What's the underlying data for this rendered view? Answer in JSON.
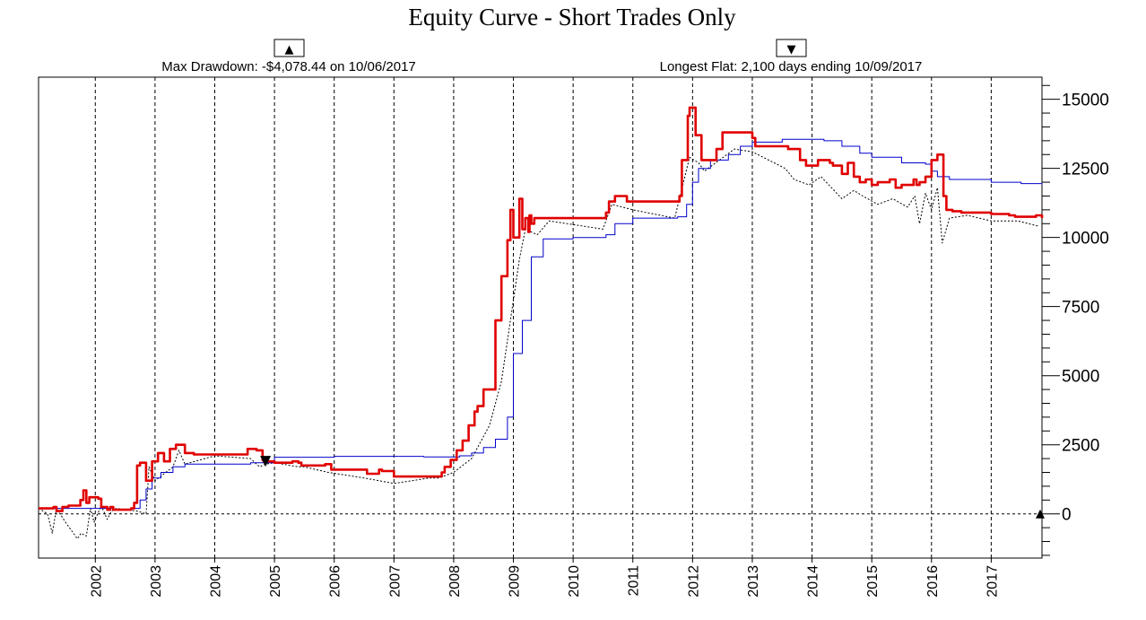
{
  "chart_data": {
    "type": "line",
    "title": "Equity Curve - Short Trades Only",
    "xlabel": "",
    "ylabel": "",
    "xlim": [
      2001.05,
      2017.85
    ],
    "ylim": [
      -1600,
      15800
    ],
    "y_ticks": [
      0,
      2500,
      5000,
      7500,
      10000,
      12500,
      15000
    ],
    "y_tick_labels": [
      "0",
      "2500",
      "5000",
      "7500",
      "10000",
      "12500",
      "15000"
    ],
    "x_ticks": [
      2002,
      2003,
      2004,
      2005,
      2006,
      2007,
      2008,
      2009,
      2010,
      2011,
      2012,
      2013,
      2014,
      2015,
      2016,
      2017
    ],
    "x_tick_labels": [
      "2002",
      "2003",
      "2004",
      "2005",
      "2006",
      "2007",
      "2008",
      "2009",
      "2010",
      "2011",
      "2012",
      "2013",
      "2014",
      "2015",
      "2016",
      "2017"
    ],
    "grid": "vertical dashed",
    "zero_line": "dashed",
    "annotations": {
      "max_drawdown": "Max Drawdown: -$4,078.44 on 10/06/2017",
      "longest_flat": "Longest Flat: 2,100 days ending 10/09/2017"
    },
    "colors": {
      "equity": "#e00000",
      "average": "#0000cc",
      "drawdown": "#000000"
    },
    "series": [
      {
        "id": "equity",
        "style": "solid-thick",
        "x": [
          2001.05,
          2001.25,
          2001.3,
          2001.35,
          2001.45,
          2001.55,
          2001.75,
          2001.8,
          2001.85,
          2001.9,
          2002.05,
          2002.1,
          2002.2,
          2002.25,
          2002.3,
          2002.6,
          2002.65,
          2002.7,
          2002.75,
          2002.85,
          2002.95,
          2003.05,
          2003.15,
          2003.25,
          2003.35,
          2003.5,
          2003.65,
          2003.8,
          2004.0,
          2004.3,
          2004.5,
          2004.55,
          2004.7,
          2004.8,
          2004.82,
          2005.0,
          2005.3,
          2005.4,
          2005.45,
          2005.85,
          2005.95,
          2006.45,
          2006.55,
          2006.75,
          2006.8,
          2006.95,
          2007.0,
          2007.7,
          2007.8,
          2007.85,
          2007.95,
          2008.05,
          2008.15,
          2008.25,
          2008.35,
          2008.4,
          2008.5,
          2008.65,
          2008.7,
          2008.8,
          2008.9,
          2008.95,
          2009.0,
          2009.1,
          2009.15,
          2009.2,
          2009.25,
          2009.27,
          2009.3,
          2009.35,
          2009.5,
          2010.4,
          2010.5,
          2010.55,
          2010.6,
          2010.7,
          2010.9,
          2011.3,
          2011.6,
          2011.7,
          2011.78,
          2011.82,
          2011.92,
          2011.95,
          2012.05,
          2012.15,
          2012.3,
          2012.4,
          2012.5,
          2012.55,
          2012.7,
          2013.0,
          2013.05,
          2013.6,
          2013.7,
          2013.8,
          2013.9,
          2014.1,
          2014.3,
          2014.35,
          2014.5,
          2014.6,
          2014.7,
          2014.8,
          2014.9,
          2015.0,
          2015.1,
          2015.3,
          2015.4,
          2015.5,
          2015.7,
          2015.75,
          2015.8,
          2015.9,
          2016.0,
          2016.1,
          2016.2,
          2016.25,
          2016.35,
          2016.5,
          2016.9,
          2017.0,
          2017.3,
          2017.4,
          2017.7,
          2017.75,
          2017.85
        ],
        "y": [
          200,
          200,
          250,
          100,
          250,
          300,
          500,
          850,
          400,
          600,
          550,
          250,
          150,
          250,
          150,
          200,
          400,
          1750,
          1850,
          1200,
          1900,
          2200,
          1900,
          2350,
          2500,
          2200,
          2150,
          2150,
          2150,
          2150,
          2150,
          2350,
          2300,
          1950,
          1900,
          1850,
          1900,
          1850,
          1750,
          1800,
          1600,
          1600,
          1450,
          1600,
          1550,
          1550,
          1350,
          1350,
          1500,
          1700,
          1950,
          2300,
          2650,
          3200,
          3700,
          3900,
          4500,
          4500,
          7000,
          8600,
          9900,
          11000,
          10000,
          11400,
          10300,
          10700,
          10200,
          10800,
          10500,
          10700,
          10700,
          10700,
          10700,
          10900,
          11300,
          11500,
          11300,
          11300,
          11300,
          11300,
          11500,
          12800,
          14400,
          14700,
          13700,
          12800,
          12800,
          13200,
          13800,
          13800,
          13800,
          13600,
          13300,
          13200,
          13200,
          12800,
          12600,
          12800,
          12700,
          12600,
          12300,
          12700,
          12200,
          12000,
          12100,
          11900,
          12000,
          12100,
          11800,
          11900,
          12100,
          11900,
          12000,
          12200,
          12800,
          13000,
          11500,
          11000,
          10950,
          10900,
          10900,
          10850,
          10800,
          10750,
          10750,
          10800,
          10700
        ]
      },
      {
        "id": "average",
        "style": "solid-thin",
        "x": [
          2001.05,
          2001.5,
          2001.8,
          2002.1,
          2002.3,
          2002.6,
          2002.75,
          2002.85,
          2002.95,
          2003.1,
          2003.3,
          2003.5,
          2004.0,
          2004.6,
          2005.0,
          2006.0,
          2007.0,
          2007.5,
          2007.95,
          2008.1,
          2008.3,
          2008.5,
          2008.7,
          2008.9,
          2009.0,
          2009.15,
          2009.3,
          2009.5,
          2010.0,
          2010.5,
          2010.55,
          2010.7,
          2011.0,
          2011.5,
          2011.75,
          2011.9,
          2012.0,
          2012.1,
          2012.3,
          2012.6,
          2012.8,
          2013.0,
          2013.5,
          2013.9,
          2014.2,
          2014.5,
          2014.8,
          2015.0,
          2015.5,
          2015.9,
          2016.0,
          2016.1,
          2016.3,
          2016.6,
          2017.0,
          2017.5,
          2017.85
        ],
        "y": [
          200,
          200,
          200,
          200,
          150,
          200,
          500,
          900,
          1300,
          1500,
          1700,
          1800,
          1800,
          1850,
          2050,
          2080,
          2080,
          2060,
          2060,
          2100,
          2200,
          2400,
          2700,
          3500,
          5800,
          7000,
          9300,
          9950,
          10000,
          10000,
          10100,
          10500,
          10700,
          10700,
          10750,
          11200,
          12000,
          12500,
          12800,
          13000,
          13300,
          13450,
          13550,
          13550,
          13500,
          13300,
          13050,
          12900,
          12700,
          12650,
          12400,
          12200,
          12100,
          12100,
          12000,
          11950,
          11900
        ]
      },
      {
        "id": "drawdown",
        "style": "dashed-thin",
        "x": [
          2001.05,
          2001.2,
          2001.28,
          2001.35,
          2001.5,
          2001.7,
          2001.76,
          2001.85,
          2001.92,
          2001.98,
          2002.1,
          2002.2,
          2002.27,
          2002.35,
          2002.7,
          2002.85,
          2002.9,
          2003.0,
          2003.3,
          2003.4,
          2003.5,
          2004.0,
          2004.6,
          2004.75,
          2004.85,
          2005.0,
          2005.4,
          2005.5,
          2005.9,
          2006.5,
          2007.0,
          2007.6,
          2007.75,
          2008.0,
          2008.3,
          2008.6,
          2008.8,
          2009.1,
          2009.2,
          2009.4,
          2009.6,
          2010.5,
          2010.65,
          2011.0,
          2011.7,
          2011.95,
          2012.1,
          2012.2,
          2012.7,
          2013.0,
          2013.55,
          2013.7,
          2013.95,
          2014.15,
          2014.5,
          2014.7,
          2014.85,
          2015.1,
          2015.35,
          2015.6,
          2015.72,
          2015.8,
          2015.9,
          2016.0,
          2016.1,
          2016.18,
          2016.3,
          2016.6,
          2017.0,
          2017.45,
          2017.8
        ],
        "y": [
          200,
          0,
          -700,
          200,
          -300,
          -900,
          -700,
          -800,
          200,
          -300,
          300,
          -200,
          100,
          200,
          100,
          0,
          1700,
          1200,
          1700,
          2300,
          1800,
          2100,
          2000,
          1700,
          1800,
          1850,
          1700,
          1700,
          1500,
          1300,
          1100,
          1300,
          1300,
          1500,
          2000,
          3200,
          4800,
          9200,
          10300,
          10100,
          10600,
          10300,
          11200,
          11000,
          10700,
          12900,
          12700,
          12400,
          13200,
          13100,
          12500,
          12100,
          11900,
          12200,
          11400,
          11700,
          11500,
          11200,
          11400,
          11100,
          11500,
          10500,
          11600,
          11000,
          11800,
          9800,
          10700,
          10800,
          10600,
          10600,
          10400
        ]
      }
    ],
    "markers": [
      {
        "id": "drawdown-marker",
        "shape": "triangle-down",
        "x": 2004.85,
        "y": 1900
      },
      {
        "id": "zero-marker",
        "shape": "triangle-up",
        "x": 2017.82,
        "y": 0
      }
    ]
  },
  "ui": {
    "up_arrow": "▲",
    "down_arrow": "▼"
  }
}
